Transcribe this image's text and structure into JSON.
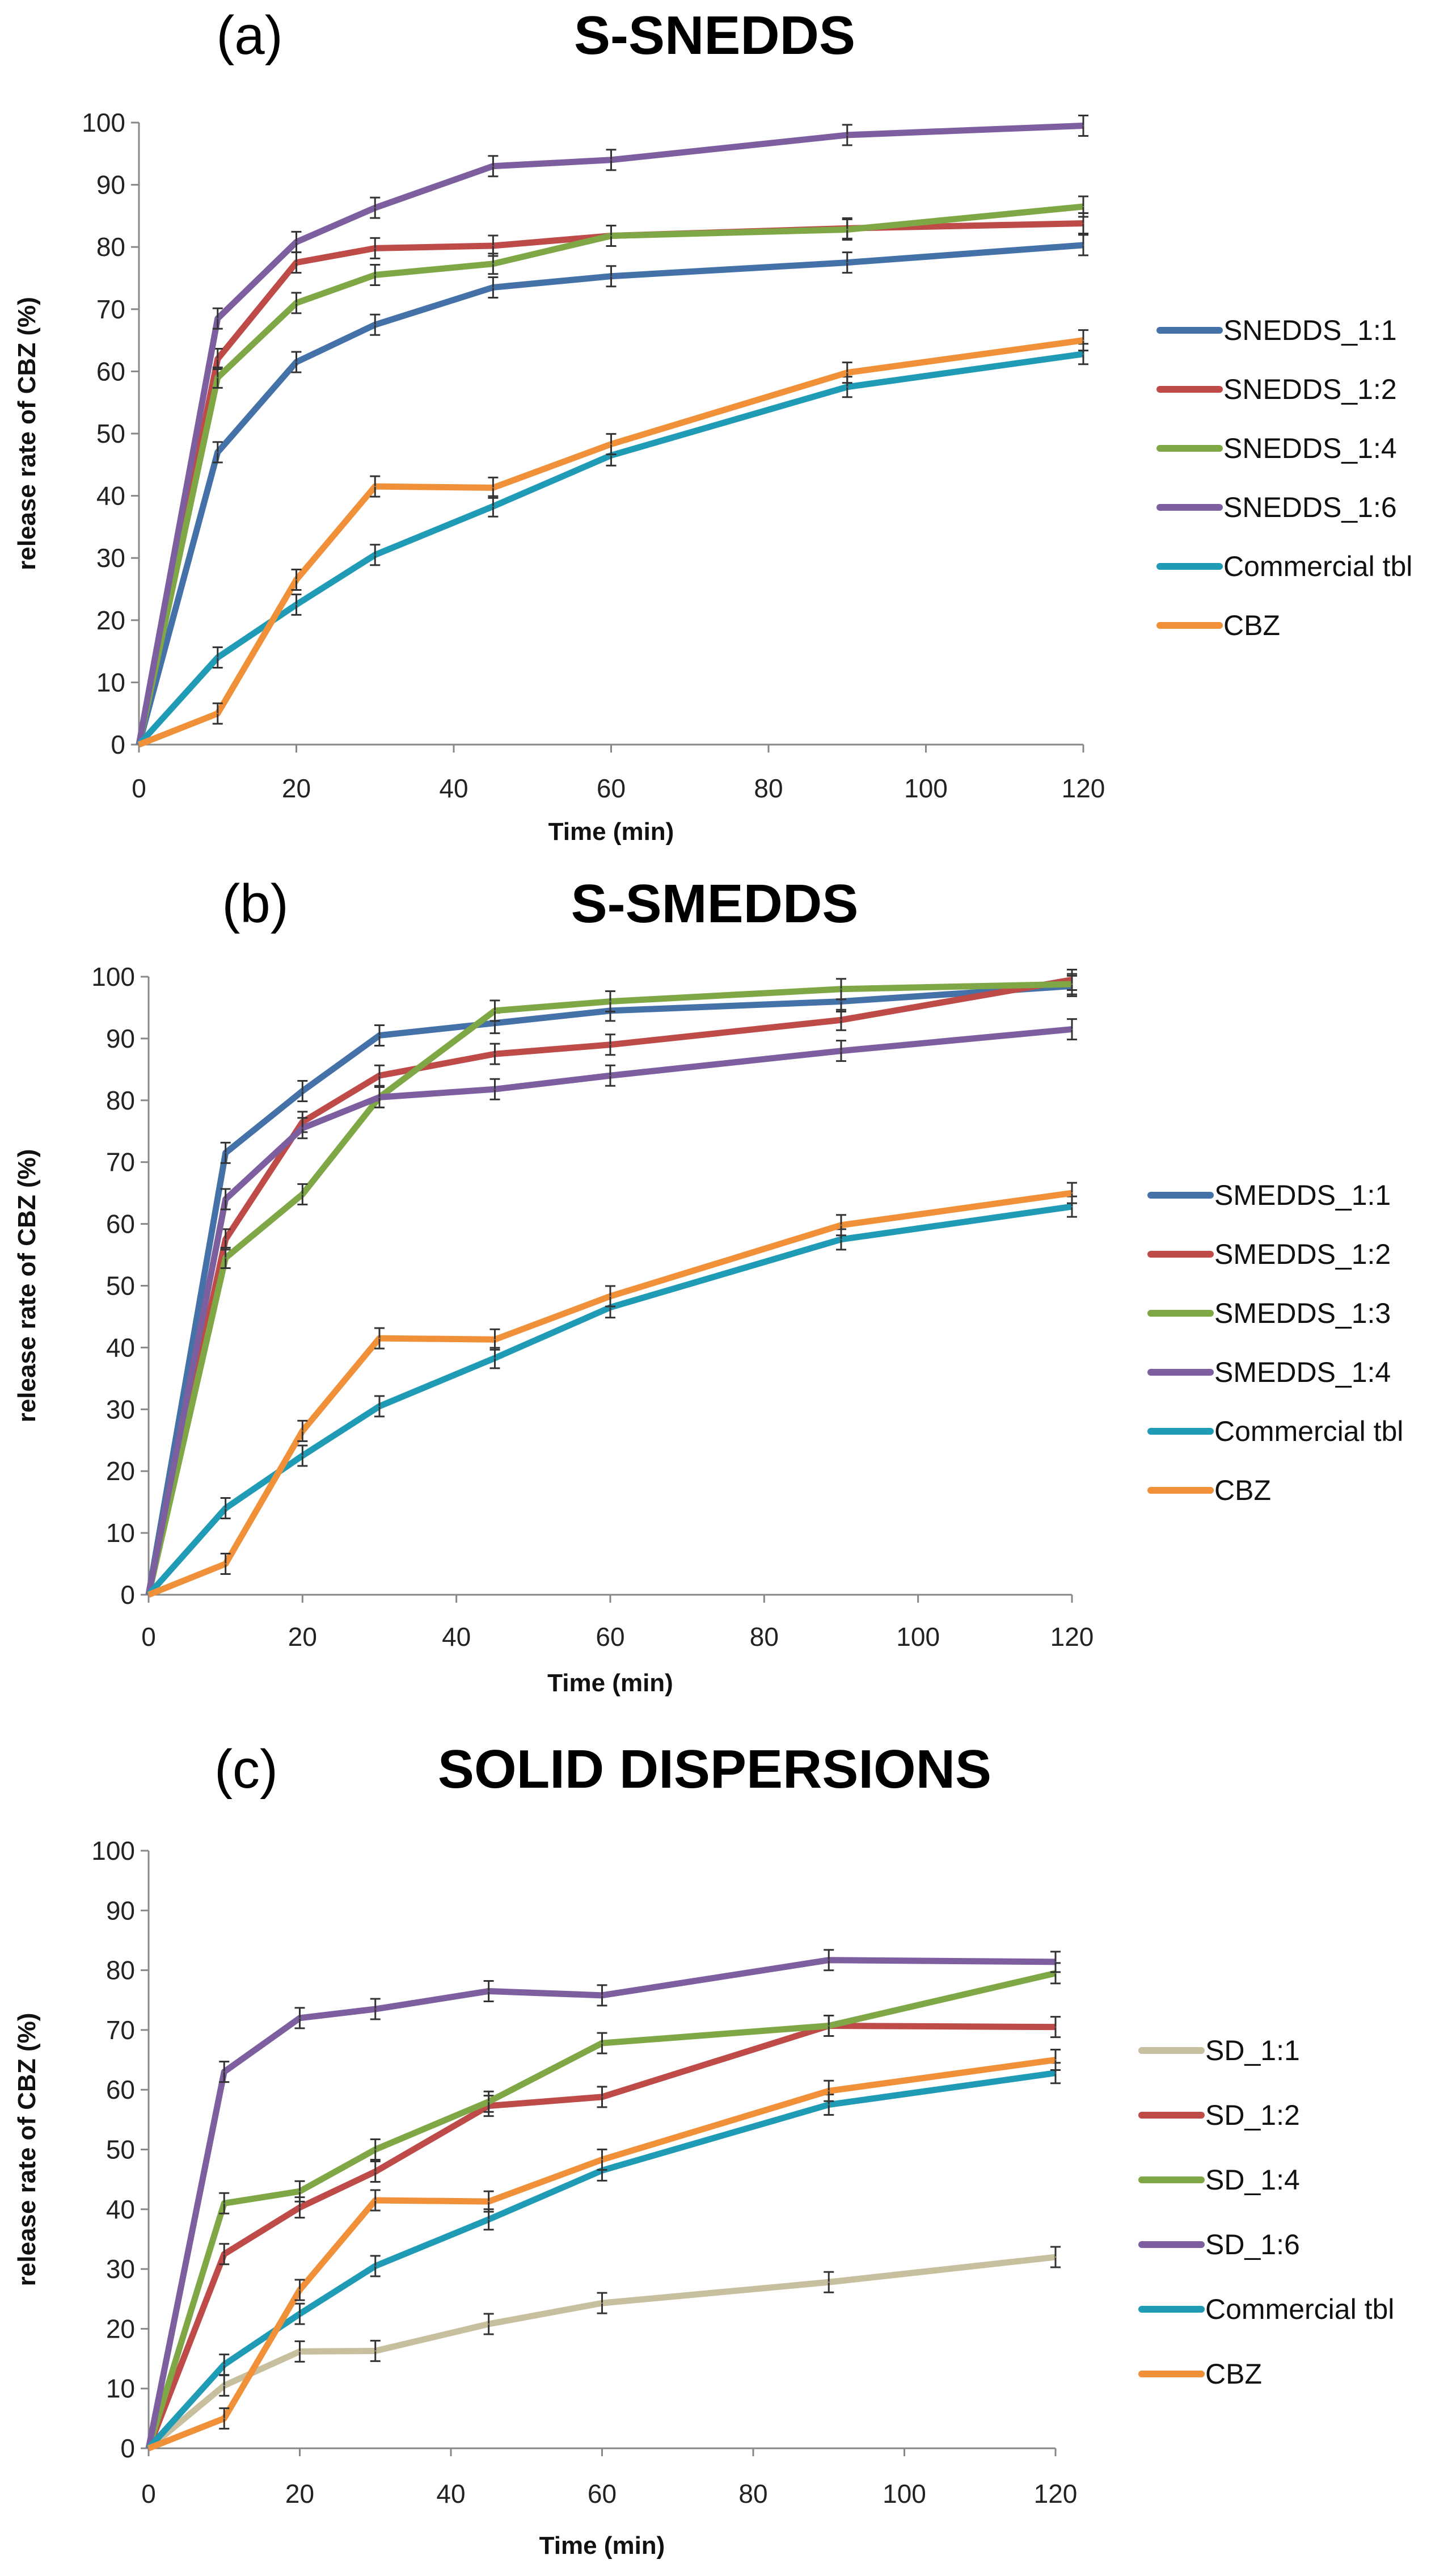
{
  "chart_data": [
    {
      "type": "line",
      "panel": "(a)",
      "title": "S-SNEDDS",
      "xlabel": "Time (min)",
      "ylabel": "release rate of CBZ (%)",
      "xlim": [
        0,
        120
      ],
      "ylim": [
        0,
        100
      ],
      "xticks": [
        0,
        20,
        40,
        60,
        80,
        100,
        120
      ],
      "yticks": [
        0,
        10,
        20,
        30,
        40,
        50,
        60,
        70,
        80,
        90,
        100
      ],
      "legend_position": "right",
      "x": [
        0,
        10,
        20,
        30,
        45,
        60,
        90,
        120
      ],
      "series": [
        {
          "name": "SNEDDS_1:1",
          "color": "#4472A8",
          "values": [
            0,
            47,
            61.5,
            67.5,
            73.5,
            75.3,
            77.5,
            80.3
          ]
        },
        {
          "name": "SNEDDS_1:2",
          "color": "#BE4B48",
          "values": [
            0,
            62,
            77.5,
            79.8,
            80.2,
            81.8,
            83,
            83.8
          ]
        },
        {
          "name": "SNEDDS_1:4",
          "color": "#7FA745",
          "values": [
            0,
            59,
            71,
            75.5,
            77.3,
            81.8,
            82.8,
            86.5
          ]
        },
        {
          "name": "SNEDDS_1:6",
          "color": "#7D5FA0",
          "values": [
            0,
            68.5,
            80.8,
            86.3,
            93,
            94,
            98,
            99.5
          ]
        },
        {
          "name": "Commercial tbl",
          "color": "#1F9BB5",
          "values": [
            0,
            14,
            22.5,
            30.5,
            38.3,
            46.5,
            57.5,
            62.8
          ]
        },
        {
          "name": "CBZ",
          "color": "#F0913A",
          "values": [
            0,
            5,
            26.5,
            41.5,
            41.3,
            48.3,
            59.8,
            65
          ]
        }
      ]
    },
    {
      "type": "line",
      "panel": "(b)",
      "title": "S-SMEDDS",
      "xlabel": "Time (min)",
      "ylabel": "release rate of CBZ (%)",
      "xlim": [
        0,
        120
      ],
      "ylim": [
        0,
        100
      ],
      "xticks": [
        0,
        20,
        40,
        60,
        80,
        100,
        120
      ],
      "yticks": [
        0,
        10,
        20,
        30,
        40,
        50,
        60,
        70,
        80,
        90,
        100
      ],
      "legend_position": "right",
      "x": [
        0,
        10,
        20,
        30,
        45,
        60,
        90,
        120
      ],
      "series": [
        {
          "name": "SMEDDS_1:1",
          "color": "#4472A8",
          "values": [
            0,
            71.5,
            81.5,
            90.5,
            92.5,
            94.5,
            96,
            98.5
          ]
        },
        {
          "name": "SMEDDS_1:2",
          "color": "#BE4B48",
          "values": [
            0,
            57.5,
            76.5,
            84,
            87.5,
            89,
            93,
            99.5
          ]
        },
        {
          "name": "SMEDDS_1:3",
          "color": "#7FA745",
          "values": [
            0,
            54.5,
            64.8,
            80.5,
            94.5,
            96,
            98,
            98.8
          ]
        },
        {
          "name": "SMEDDS_1:4",
          "color": "#7D5FA0",
          "values": [
            0,
            64,
            75.5,
            80.5,
            81.8,
            84,
            88,
            91.5
          ]
        },
        {
          "name": "Commercial tbl",
          "color": "#1F9BB5",
          "values": [
            0,
            14,
            22.5,
            30.5,
            38.3,
            46.5,
            57.5,
            62.8
          ]
        },
        {
          "name": "CBZ",
          "color": "#F0913A",
          "values": [
            0,
            5,
            26.5,
            41.5,
            41.3,
            48.3,
            59.8,
            65
          ]
        }
      ]
    },
    {
      "type": "line",
      "panel": "(c)",
      "title": "SOLID DISPERSIONS",
      "xlabel": "Time (min)",
      "ylabel": "release rate of CBZ (%)",
      "xlim": [
        0,
        120
      ],
      "ylim": [
        0,
        100
      ],
      "xticks": [
        0,
        20,
        40,
        60,
        80,
        100,
        120
      ],
      "yticks": [
        0,
        10,
        20,
        30,
        40,
        50,
        60,
        70,
        80,
        90,
        100
      ],
      "legend_position": "right",
      "x": [
        0,
        10,
        20,
        30,
        45,
        60,
        90,
        120
      ],
      "series": [
        {
          "name": "SD_1:1",
          "color": "#C8BF9E",
          "values": [
            0,
            10.5,
            16.2,
            16.3,
            20.8,
            24.3,
            27.8,
            32
          ]
        },
        {
          "name": "SD_1:2",
          "color": "#BE4B48",
          "values": [
            0,
            32.5,
            40.3,
            46.3,
            57.3,
            58.8,
            70.7,
            70.5
          ]
        },
        {
          "name": "SD_1:4",
          "color": "#7FA745",
          "values": [
            0,
            41,
            43,
            50,
            58,
            67.8,
            70.7,
            79.5
          ]
        },
        {
          "name": "SD_1:6",
          "color": "#7D5FA0",
          "values": [
            0,
            63,
            72,
            73.5,
            76.5,
            75.8,
            81.7,
            81.4
          ]
        },
        {
          "name": "Commercial tbl",
          "color": "#1F9BB5",
          "values": [
            0,
            14,
            22.5,
            30.5,
            38.3,
            46.5,
            57.5,
            62.8
          ]
        },
        {
          "name": "CBZ",
          "color": "#F0913A",
          "values": [
            0,
            5,
            26.5,
            41.5,
            41.3,
            48.3,
            59.8,
            65
          ]
        }
      ]
    }
  ]
}
